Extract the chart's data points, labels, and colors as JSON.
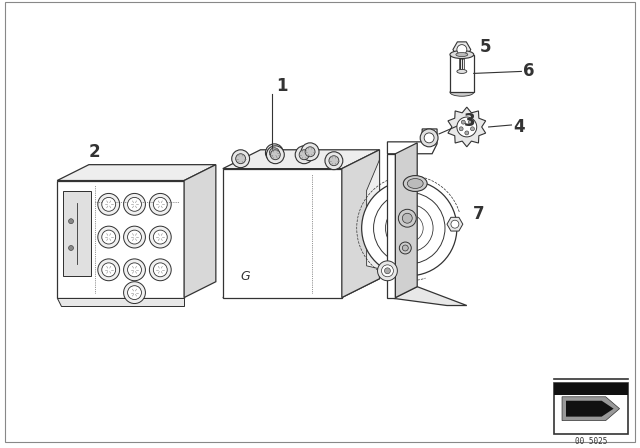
{
  "background_color": "#ffffff",
  "lc": "#333333",
  "part_labels": [
    "1",
    "2",
    "3",
    "4",
    "5",
    "6",
    "7"
  ],
  "diagram_number": "00 5025",
  "G_label": "G"
}
